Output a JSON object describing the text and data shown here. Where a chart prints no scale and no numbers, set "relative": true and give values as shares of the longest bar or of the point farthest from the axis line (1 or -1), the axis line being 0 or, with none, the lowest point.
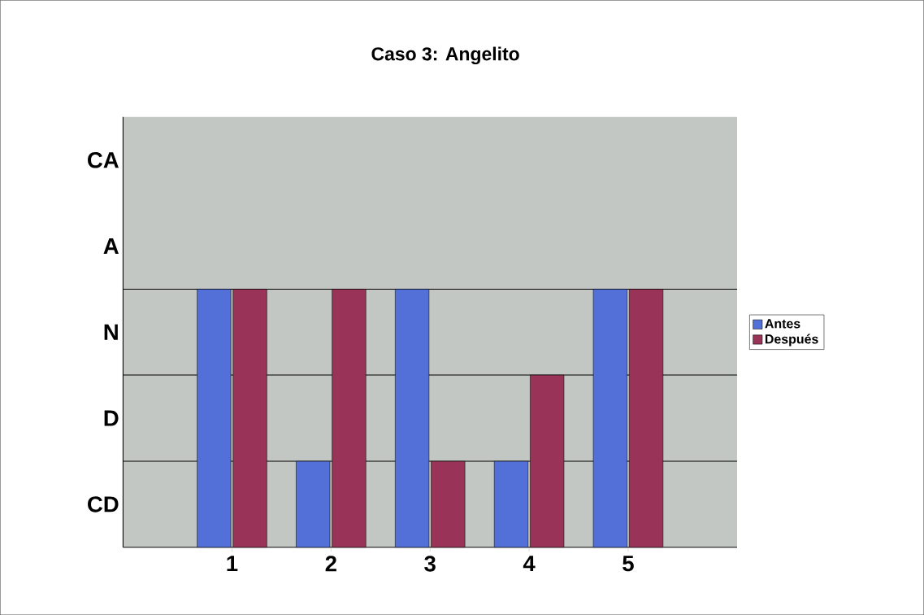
{
  "chart_data": {
    "type": "bar",
    "title": "Caso 3: Angelito",
    "relative": true,
    "categories": [
      "1",
      "2",
      "3",
      "4",
      "5"
    ],
    "series": [
      {
        "name": "Antes",
        "color": "#5270d8",
        "values": [
          1,
          0.333,
          1,
          0.333,
          1
        ]
      },
      {
        "name": "Después",
        "color": "#993358",
        "values": [
          1,
          1,
          0.333,
          0.667,
          1
        ]
      }
    ],
    "annotations": [
      "CD",
      "D",
      "N",
      "A",
      "CA"
    ],
    "ref_lines": [
      {
        "axis": "y",
        "value": 0.333
      },
      {
        "axis": "y",
        "value": 0.667
      },
      {
        "axis": "y",
        "value": 1
      }
    ],
    "legend": "right"
  }
}
